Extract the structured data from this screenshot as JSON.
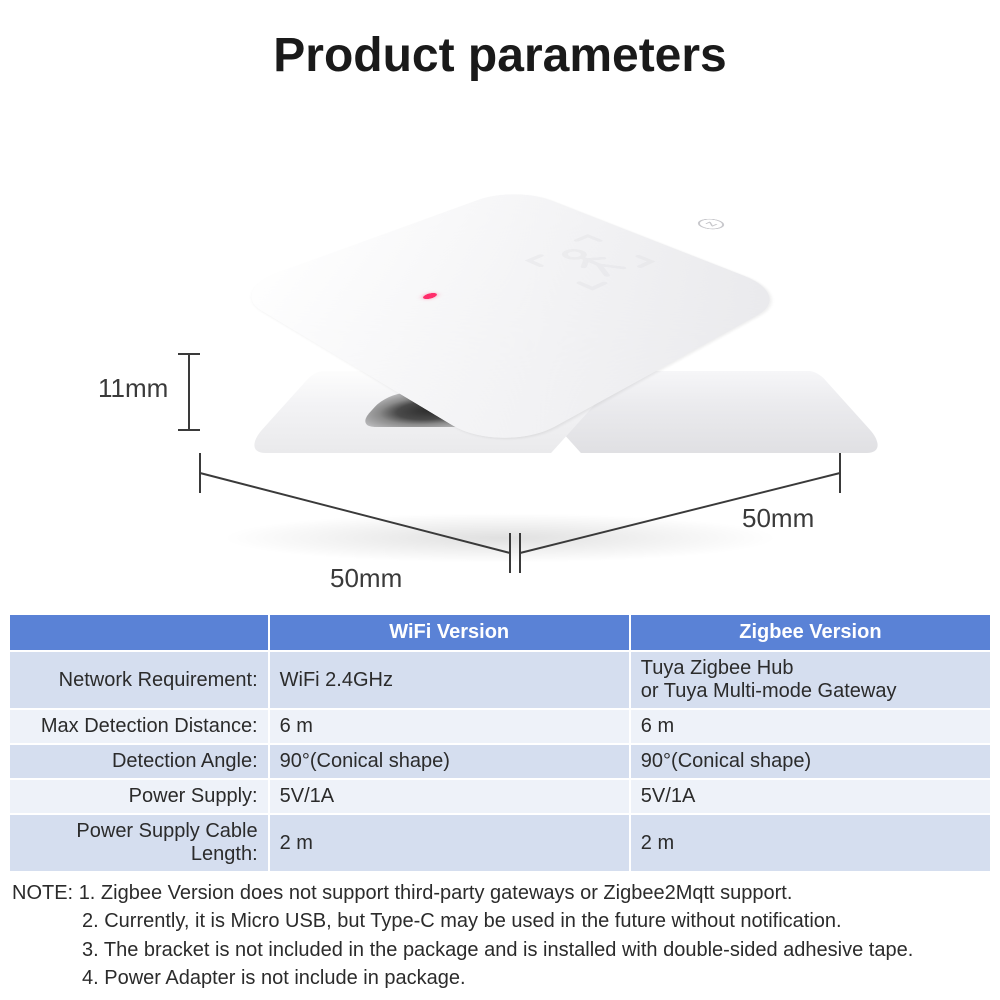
{
  "title": "Product parameters",
  "dimensions": {
    "height": "11mm",
    "width": "50mm",
    "depth": "50mm"
  },
  "device": {
    "body_gradient_from": "#ffffff",
    "body_gradient_to": "#e9e9ec",
    "led_color": "#ff2d6b",
    "icon_stroke": "#d6d6da",
    "z_mark": "Z"
  },
  "table": {
    "header_bg": "#5a82d6",
    "header_fg": "#ffffff",
    "row_odd_bg": "#d5deef",
    "row_even_bg": "#eef2f9",
    "columns": [
      "",
      "WiFi Version",
      "Zigbee Version"
    ],
    "rows": [
      {
        "label": "Network Requirement:",
        "wifi": "WiFi 2.4GHz",
        "zigbee": "Tuya Zigbee Hub\nor Tuya Multi-mode Gateway"
      },
      {
        "label": "Max Detection Distance:",
        "wifi": "6 m",
        "zigbee": "6 m"
      },
      {
        "label": "Detection Angle:",
        "wifi": "90°(Conical shape)",
        "zigbee": "90°(Conical shape)"
      },
      {
        "label": "Power Supply:",
        "wifi": "5V/1A",
        "zigbee": "5V/1A"
      },
      {
        "label": "Power Supply Cable Length:",
        "wifi": "2 m",
        "zigbee": "2 m"
      }
    ]
  },
  "notes": {
    "lead": "NOTE:",
    "items": [
      "1. Zigbee Version does not support third-party gateways or Zigbee2Mqtt support.",
      "2. Currently, it is Micro USB, but Type-C may be used in the future without notification.",
      "3. The bracket is not included in the package and is installed with double-sided adhesive tape.",
      "4. Power Adapter is not include in package."
    ]
  }
}
